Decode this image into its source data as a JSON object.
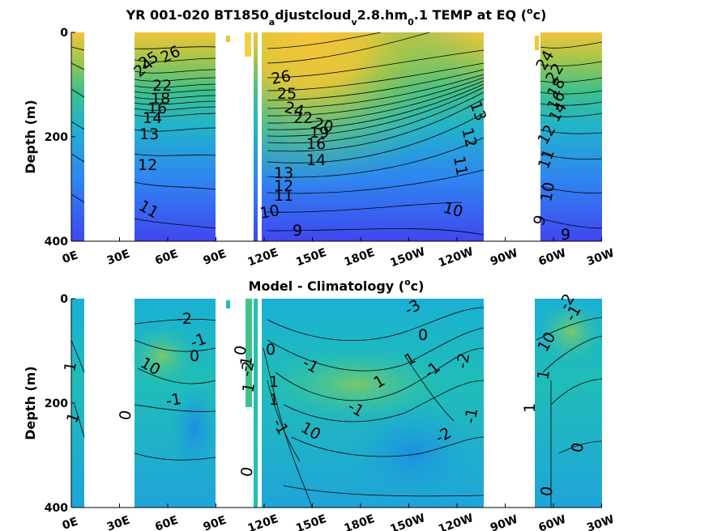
{
  "chart_data": [
    {
      "type": "heatmap",
      "title": "YR 001-020 BT1850",
      "title_parts": [
        "YR 001-020 BT1850",
        "a",
        "djustcloud",
        "v",
        "2.8.hm",
        "0",
        ".1 TEMP at EQ (",
        "o",
        "c)"
      ],
      "ylabel": "Depth (m)",
      "ylim": [
        400,
        0
      ],
      "yticks": [
        "0",
        "200",
        "400"
      ],
      "xticks": [
        "0E",
        "30E",
        "60E",
        "90E",
        "120E",
        "150E",
        "180E",
        "150W",
        "120W",
        "90W",
        "60W",
        "30W"
      ],
      "colormap": [
        "#3f47f0",
        "#2f8df0",
        "#22b6c8",
        "#3dc38a",
        "#a9c44a",
        "#f2c23a",
        "#f8d640"
      ],
      "contour_labels": [
        {
          "text": "26"
        },
        {
          "text": "25"
        },
        {
          "text": "24"
        },
        {
          "text": "22"
        },
        {
          "text": "18"
        },
        {
          "text": "16"
        },
        {
          "text": "14"
        },
        {
          "text": "13"
        },
        {
          "text": "12"
        },
        {
          "text": "11"
        },
        {
          "text": "26"
        },
        {
          "text": "25"
        },
        {
          "text": "24"
        },
        {
          "text": "22"
        },
        {
          "text": "20"
        },
        {
          "text": "19"
        },
        {
          "text": "16"
        },
        {
          "text": "14"
        },
        {
          "text": "13"
        },
        {
          "text": "12"
        },
        {
          "text": "11"
        },
        {
          "text": "10"
        },
        {
          "text": "9"
        },
        {
          "text": "13"
        },
        {
          "text": "12"
        },
        {
          "text": "11"
        },
        {
          "text": "10"
        },
        {
          "text": "24"
        },
        {
          "text": "22"
        },
        {
          "text": "18"
        },
        {
          "text": "16"
        },
        {
          "text": "14"
        },
        {
          "text": "12"
        },
        {
          "text": "11"
        },
        {
          "text": "10"
        },
        {
          "text": "9"
        },
        {
          "text": "9"
        }
      ]
    },
    {
      "type": "heatmap",
      "title": "Model - Climatology (",
      "title_parts": [
        "Model - Climatology (",
        "o",
        "c)"
      ],
      "ylabel": "Depth (m)",
      "ylim": [
        400,
        0
      ],
      "yticks": [
        "0",
        "200",
        "400"
      ],
      "xticks": [
        "0E",
        "30E",
        "60E",
        "90E",
        "120E",
        "150E",
        "180E",
        "150W",
        "120W",
        "90W",
        "60W",
        "30W"
      ],
      "colormap": [
        "#2a86e6",
        "#1aa9d8",
        "#20c0b0",
        "#5ac87c",
        "#a6c84c"
      ],
      "contour_labels": [
        {
          "text": "1"
        },
        {
          "text": "1"
        },
        {
          "text": "-2"
        },
        {
          "text": "-1"
        },
        {
          "text": "0"
        },
        {
          "text": "10"
        },
        {
          "text": "-1"
        },
        {
          "text": "0"
        },
        {
          "text": "0"
        },
        {
          "text": "-2"
        },
        {
          "text": "1"
        },
        {
          "text": "0"
        },
        {
          "text": "-1"
        },
        {
          "text": "1"
        },
        {
          "text": "1"
        },
        {
          "text": "-1"
        },
        {
          "text": "10"
        },
        {
          "text": "0"
        },
        {
          "text": "-3"
        },
        {
          "text": "0"
        },
        {
          "text": "1"
        },
        {
          "text": "1"
        },
        {
          "text": "-1"
        },
        {
          "text": "-1"
        },
        {
          "text": "-2"
        },
        {
          "text": "-1"
        },
        {
          "text": "-2"
        },
        {
          "text": "-1"
        },
        {
          "text": "10"
        },
        {
          "text": "1"
        },
        {
          "text": "-1"
        },
        {
          "text": "-2"
        },
        {
          "text": "0"
        },
        {
          "text": "0"
        },
        {
          "text": "1"
        }
      ]
    }
  ]
}
